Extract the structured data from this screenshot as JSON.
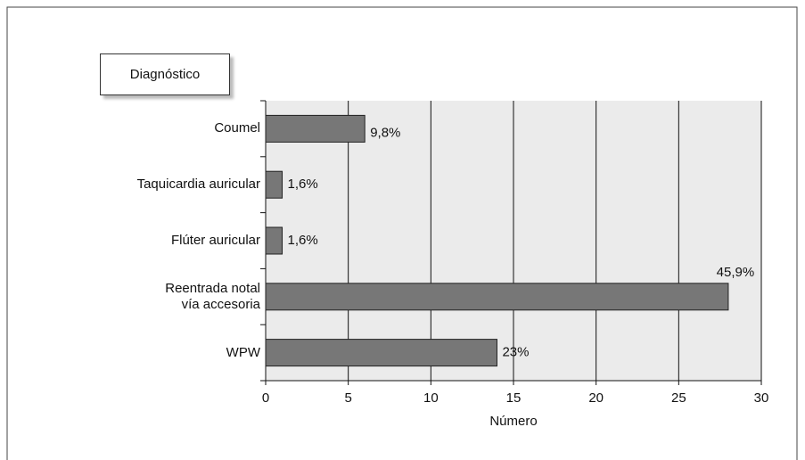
{
  "chart_data": {
    "type": "barh",
    "y_title": "Diagnóstico",
    "x_title": "Número",
    "categories": [
      "Coumel",
      "Taquicardia auricular",
      "Flúter auricular",
      "Reentrada notal\nvía accesoria",
      "WPW"
    ],
    "values": [
      6,
      1,
      1,
      28,
      14
    ],
    "percent_labels": [
      "9,8%",
      "1,6%",
      "1,6%",
      "45,9%",
      "23%"
    ],
    "color": "#777777",
    "xlim": [
      0,
      30
    ],
    "xticks": [
      0,
      5,
      10,
      15,
      20,
      25,
      30
    ],
    "grid": true
  }
}
